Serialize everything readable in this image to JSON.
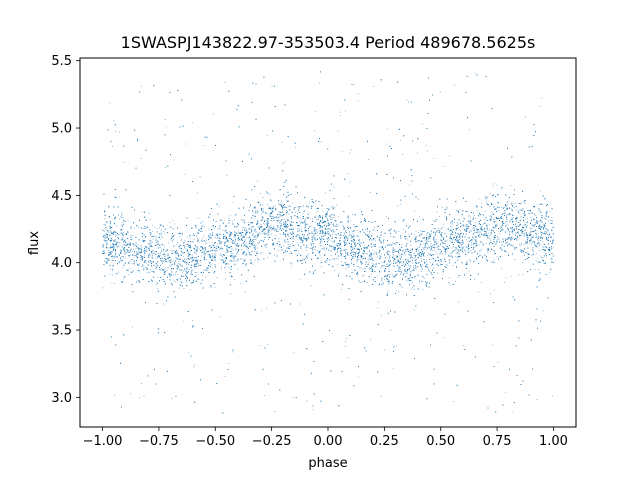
{
  "chart_data": {
    "type": "scatter",
    "title": "1SWASPJ143822.97-353503.4 Period 489678.5625s",
    "xlabel": "phase",
    "ylabel": "flux",
    "xlim": [
      -1.1,
      1.1
    ],
    "ylim": [
      2.78,
      5.52
    ],
    "xticks": [
      -1.0,
      -0.75,
      -0.5,
      -0.25,
      0.0,
      0.25,
      0.5,
      0.75,
      1.0
    ],
    "xtick_labels": [
      "−1.00",
      "−0.75",
      "−0.50",
      "−0.25",
      "0.00",
      "0.25",
      "0.50",
      "0.75",
      "1.00"
    ],
    "yticks": [
      3.0,
      3.5,
      4.0,
      4.5,
      5.0,
      5.5
    ],
    "ytick_labels": [
      "3.0",
      "3.5",
      "4.0",
      "4.5",
      "5.0",
      "5.5"
    ],
    "grid": false,
    "marker_color": "#1f77b4",
    "series": [
      {
        "phase_range": [
          -1.0,
          1.0
        ],
        "mean_flux_profile": {
          "x": [
            -1.0,
            -0.9,
            -0.8,
            -0.7,
            -0.6,
            -0.5,
            -0.4,
            -0.3,
            -0.2,
            -0.1,
            0.0,
            0.1,
            0.2,
            0.3,
            0.4,
            0.5,
            0.6,
            0.7,
            0.8,
            0.9,
            1.0
          ],
          "y": [
            4.18,
            4.12,
            4.08,
            4.03,
            4.05,
            4.1,
            4.15,
            4.25,
            4.3,
            4.2,
            4.2,
            4.12,
            4.07,
            4.03,
            4.05,
            4.1,
            4.18,
            4.22,
            4.28,
            4.22,
            4.2
          ]
        },
        "typical_scatter": 0.12,
        "flux_range": [
          2.88,
          5.42
        ]
      }
    ]
  }
}
